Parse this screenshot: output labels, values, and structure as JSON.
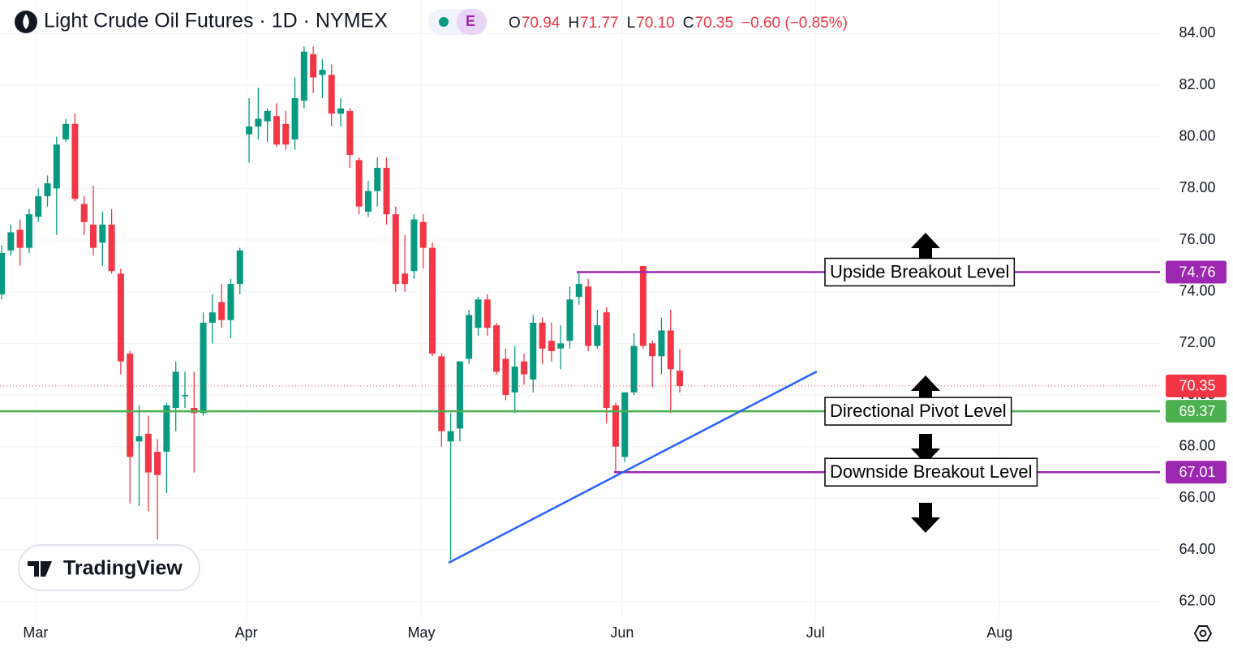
{
  "chart_data": {
    "type": "candlestick",
    "title": "Light Crude Oil Futures · 1D · NYMEX",
    "badge": "E",
    "ohlc_header": [
      {
        "label": "O",
        "value": "70.94"
      },
      {
        "label": "H",
        "value": "71.77"
      },
      {
        "label": "L",
        "value": "70.10"
      },
      {
        "label": "C",
        "value": "70.35"
      }
    ],
    "change": "−0.60 (−0.85%)",
    "brand": "TradingView",
    "up_color": "#089981",
    "down_color": "#f23645",
    "open": [
      73.9,
      75.6,
      76.4,
      75.7,
      76.9,
      77.7,
      78.0,
      79.9,
      80.5,
      77.4,
      76.6,
      75.9,
      76.6,
      74.7,
      71.6,
      68.2,
      68.5,
      67.8,
      67.8,
      69.5,
      69.95,
      69.5,
      69.3,
      72.8,
      73.6,
      72.9,
      74.3,
      80.1,
      80.4,
      80.6,
      80.8,
      80.5,
      79.9,
      81.4,
      83.2,
      82.4,
      82.4,
      80.9,
      81.0,
      79.1,
      77.1,
      77.9,
      78.8,
      77.0,
      74.7,
      74.8,
      76.7,
      75.7,
      71.5,
      68.2,
      68.7,
      71.4,
      72.6,
      73.7,
      72.7,
      71.4,
      70.1,
      71.3,
      70.6,
      72.8,
      72.1,
      71.8,
      72.1,
      73.8,
      74.2,
      71.9,
      73.2,
      69.6,
      67.6,
      70.1,
      75.0,
      72.0,
      71.5,
      72.5,
      70.94
    ],
    "high": [
      75.8,
      76.6,
      76.8,
      77.2,
      78.0,
      78.5,
      80.0,
      80.7,
      80.9,
      77.7,
      78.1,
      77.1,
      77.2,
      74.9,
      71.7,
      69.6,
      69.2,
      68.3,
      69.7,
      71.3,
      70.9,
      70.9,
      73.2,
      73.9,
      74.3,
      74.5,
      75.7,
      81.5,
      81.9,
      81.1,
      81.3,
      81.0,
      82.3,
      83.5,
      83.5,
      83.0,
      82.8,
      81.5,
      81.1,
      79.2,
      78.3,
      79.2,
      79.2,
      77.3,
      76.2,
      77.0,
      77.0,
      75.9,
      71.6,
      69.3,
      71.3,
      73.3,
      73.8,
      73.9,
      72.8,
      71.8,
      71.9,
      71.6,
      73.1,
      73.0,
      72.8,
      72.7,
      74.2,
      74.8,
      74.5,
      73.3,
      73.4,
      69.7,
      70.1,
      72.4,
      75.0,
      72.1,
      73.0,
      73.3,
      71.77
    ],
    "low": [
      73.7,
      75.4,
      75.0,
      75.5,
      76.7,
      77.3,
      76.2,
      79.8,
      77.5,
      76.2,
      75.4,
      75.0,
      74.7,
      70.8,
      65.8,
      65.7,
      65.5,
      64.4,
      66.2,
      68.6,
      69.5,
      67.0,
      69.2,
      72.0,
      72.6,
      72.2,
      73.9,
      79.0,
      79.9,
      79.8,
      79.6,
      79.5,
      79.5,
      81.1,
      81.7,
      81.5,
      80.4,
      80.4,
      78.8,
      77.0,
      76.9,
      77.3,
      76.6,
      74.0,
      74.0,
      74.5,
      74.9,
      71.5,
      68.0,
      63.6,
      68.2,
      71.2,
      72.3,
      72.3,
      70.8,
      69.8,
      69.3,
      70.4,
      70.1,
      71.2,
      71.3,
      71.0,
      71.8,
      73.5,
      71.7,
      71.8,
      68.9,
      67.0,
      67.4,
      70.0,
      71.8,
      70.3,
      70.8,
      69.3,
      70.1
    ],
    "close": [
      75.5,
      76.3,
      75.7,
      77.0,
      77.7,
      78.2,
      79.7,
      80.5,
      77.6,
      76.7,
      75.7,
      76.6,
      74.8,
      71.3,
      67.6,
      68.4,
      67.0,
      66.9,
      69.6,
      70.9,
      70.0,
      69.3,
      72.8,
      73.2,
      72.9,
      74.3,
      75.6,
      80.4,
      80.7,
      81.0,
      79.7,
      79.7,
      81.5,
      83.3,
      82.3,
      82.6,
      80.9,
      81.1,
      79.3,
      77.3,
      77.9,
      78.8,
      77.0,
      74.3,
      74.3,
      76.8,
      75.7,
      71.6,
      68.6,
      68.6,
      71.3,
      73.1,
      73.7,
      72.6,
      70.9,
      70.0,
      71.1,
      70.8,
      72.8,
      71.8,
      71.7,
      72.0,
      73.7,
      74.3,
      71.9,
      72.7,
      69.5,
      68.0,
      70.1,
      71.9,
      71.9,
      71.5,
      72.5,
      71.0,
      70.35
    ],
    "levels": [
      {
        "name": "Upside Breakout Level",
        "value": 74.76,
        "color": "#9c27b0"
      },
      {
        "name": "Directional Pivot Level",
        "value": 69.37,
        "color": "#4caf50"
      },
      {
        "name": "Downside Breakout Level",
        "value": 67.01,
        "color": "#9c27b0"
      }
    ],
    "ylim": [
      61.3,
      85.3
    ],
    "yticks": [
      {
        "value": 62,
        "label": "62.00"
      },
      {
        "value": 64,
        "label": "64.00"
      },
      {
        "value": 66,
        "label": "66.00"
      },
      {
        "value": 68,
        "label": "68.00"
      },
      {
        "value": 70,
        "label": "70.00"
      },
      {
        "value": 72,
        "label": "72.00"
      },
      {
        "value": 74,
        "label": "74.00"
      },
      {
        "value": 76,
        "label": "76.00"
      },
      {
        "value": 78,
        "label": "78.00"
      },
      {
        "value": 80,
        "label": "80.00"
      },
      {
        "value": 82,
        "label": "82.00"
      },
      {
        "value": 84,
        "label": "84.00"
      }
    ],
    "xlim": [
      -0.18,
      126.4
    ],
    "xticks": [
      {
        "value": 3.7,
        "label": "Mar"
      },
      {
        "value": 26.7,
        "label": "Apr"
      },
      {
        "value": 45.8,
        "label": "May"
      },
      {
        "value": 67.7,
        "label": "Jun"
      },
      {
        "value": 88.8,
        "label": "Jul"
      },
      {
        "value": 108.9,
        "label": "Aug"
      }
    ],
    "grid": true
  }
}
